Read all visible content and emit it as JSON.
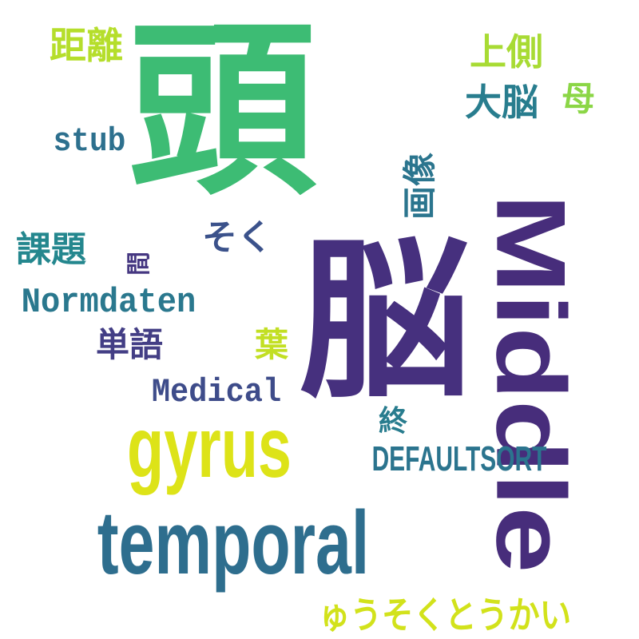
{
  "words": [
    {
      "id": "atama",
      "text": "頭",
      "color": "#3dbc74"
    },
    {
      "id": "nou",
      "text": "脳",
      "color": "#46307e"
    },
    {
      "id": "middle",
      "text": "Middle",
      "color": "#472d7b"
    },
    {
      "id": "temporal",
      "text": "temporal",
      "color": "#2e6e8e"
    },
    {
      "id": "gyrus",
      "text": "gyrus",
      "color": "#dde318"
    },
    {
      "id": "kyori",
      "text": "距離",
      "color": "#b5de2b"
    },
    {
      "id": "jousoku",
      "text": "上側",
      "color": "#a8db34"
    },
    {
      "id": "dainou",
      "text": "大脳",
      "color": "#287d8e"
    },
    {
      "id": "bo",
      "text": "母",
      "color": "#8bd646"
    },
    {
      "id": "stub",
      "text": "stub",
      "color": "#2d708e"
    },
    {
      "id": "gazou",
      "text": "画像",
      "color": "#2b758e"
    },
    {
      "id": "kadai",
      "text": "課題",
      "color": "#24878e"
    },
    {
      "id": "soku",
      "text": "そく",
      "color": "#3b528b"
    },
    {
      "id": "aida",
      "text": "間",
      "color": "#453781"
    },
    {
      "id": "normdaten",
      "text": "Normdaten",
      "color": "#2a788e"
    },
    {
      "id": "tango",
      "text": "単語",
      "color": "#433e85"
    },
    {
      "id": "ha",
      "text": "葉",
      "color": "#c2df23"
    },
    {
      "id": "medical",
      "text": "Medical",
      "color": "#3e4c8a"
    },
    {
      "id": "owari",
      "text": "終",
      "color": "#287c8e"
    },
    {
      "id": "defaultsort",
      "text": "DEFAULTSORT",
      "color": "#2b748e"
    },
    {
      "id": "yusoku",
      "text": "ゅうそくとうかい",
      "color": "#d2e21b"
    }
  ]
}
